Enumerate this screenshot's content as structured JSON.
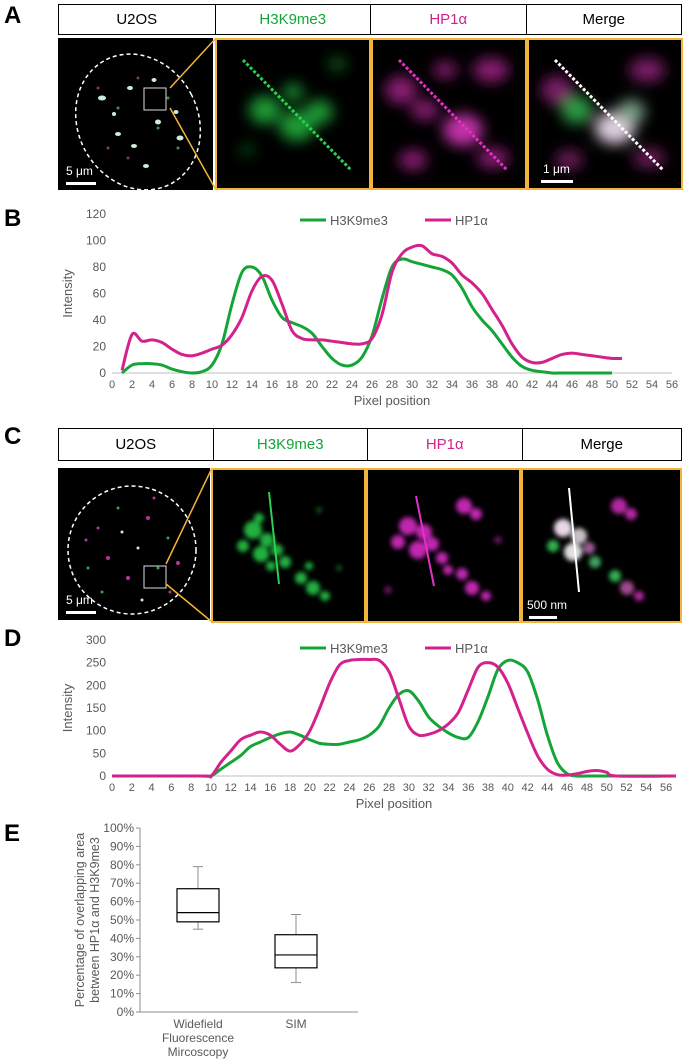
{
  "panels": {
    "A": {
      "letter": "A",
      "headers": [
        "U2OS",
        "H3K9me3",
        "HP1α",
        "Merge"
      ],
      "scale_overview": "5 μm",
      "scale_zoom": "1 μm"
    },
    "B": {
      "letter": "B"
    },
    "C": {
      "letter": "C",
      "headers": [
        "U2OS",
        "H3K9me3",
        "HP1α",
        "Merge"
      ],
      "scale_overview": "5 μm",
      "scale_zoom": "500 nm"
    },
    "D": {
      "letter": "D"
    },
    "E": {
      "letter": "E"
    }
  },
  "colors": {
    "green": "#13a538",
    "magenta": "#d4218c",
    "gold": "#f2b43c"
  },
  "chart_data": [
    {
      "id": "B",
      "type": "line",
      "xlabel": "Pixel position",
      "ylabel": "Intensity",
      "xlim": [
        0,
        56
      ],
      "ylim": [
        0,
        120
      ],
      "xticks": [
        0,
        2,
        4,
        6,
        8,
        10,
        12,
        14,
        16,
        18,
        20,
        22,
        24,
        26,
        28,
        30,
        32,
        34,
        36,
        38,
        40,
        42,
        44,
        46,
        48,
        50,
        52,
        54,
        56
      ],
      "yticks": [
        0,
        20,
        40,
        60,
        80,
        100,
        120
      ],
      "legend": "top",
      "series": [
        {
          "name": "H3K9me3",
          "color": "#13a538",
          "x": [
            1,
            2,
            3,
            4,
            5,
            6,
            7,
            8,
            9,
            10,
            11,
            12,
            13,
            14,
            15,
            16,
            17,
            18,
            19,
            20,
            21,
            22,
            23,
            24,
            25,
            26,
            27,
            28,
            29,
            30,
            31,
            32,
            33,
            34,
            35,
            36,
            37,
            38,
            39,
            40,
            41,
            42,
            43,
            44,
            45,
            46,
            47,
            48,
            49,
            50
          ],
          "y": [
            0,
            6,
            7,
            7,
            6,
            3,
            1,
            0,
            1,
            6,
            22,
            52,
            76,
            80,
            73,
            55,
            42,
            38,
            35,
            30,
            20,
            11,
            6,
            6,
            12,
            28,
            56,
            80,
            86,
            84,
            82,
            80,
            78,
            74,
            64,
            50,
            40,
            32,
            22,
            12,
            5,
            2,
            1,
            0,
            0,
            0,
            0,
            0,
            0,
            0
          ]
        },
        {
          "name": "HP1α",
          "color": "#d4218c",
          "x": [
            1,
            2,
            3,
            4,
            5,
            6,
            7,
            8,
            9,
            10,
            11,
            12,
            13,
            14,
            15,
            16,
            17,
            18,
            19,
            20,
            21,
            22,
            23,
            24,
            25,
            26,
            27,
            28,
            29,
            30,
            31,
            32,
            33,
            34,
            35,
            36,
            37,
            38,
            39,
            40,
            41,
            42,
            43,
            44,
            45,
            46,
            47,
            48,
            49,
            50,
            51
          ],
          "y": [
            2,
            29,
            24,
            25,
            23,
            18,
            14,
            13,
            15,
            18,
            21,
            29,
            42,
            62,
            73,
            70,
            52,
            32,
            26,
            25,
            25,
            24,
            23,
            22,
            22,
            26,
            44,
            76,
            90,
            95,
            96,
            90,
            88,
            83,
            74,
            68,
            60,
            48,
            36,
            22,
            12,
            8,
            8,
            11,
            14,
            15,
            14,
            13,
            12,
            11,
            11
          ]
        }
      ]
    },
    {
      "id": "D",
      "type": "line",
      "xlabel": "Pixel position",
      "ylabel": "Intensity",
      "xlim": [
        0,
        57
      ],
      "ylim": [
        0,
        300
      ],
      "xticks": [
        0,
        2,
        4,
        6,
        8,
        10,
        12,
        14,
        16,
        18,
        20,
        22,
        24,
        26,
        28,
        30,
        32,
        34,
        36,
        38,
        40,
        42,
        44,
        46,
        48,
        50,
        52,
        54,
        56
      ],
      "yticks": [
        0,
        50,
        100,
        150,
        200,
        250,
        300
      ],
      "legend": "top",
      "series": [
        {
          "name": "H3K9me3",
          "color": "#13a538",
          "x": [
            0,
            9,
            10,
            11,
            12,
            13,
            14,
            15,
            16,
            17,
            18,
            19,
            20,
            21,
            22,
            23,
            24,
            25,
            26,
            27,
            28,
            29,
            30,
            31,
            32,
            33,
            34,
            35,
            36,
            37,
            38,
            39,
            40,
            41,
            42,
            43,
            44,
            45,
            46,
            47,
            48,
            49,
            50,
            51,
            57
          ],
          "y": [
            0,
            0,
            0,
            15,
            30,
            45,
            65,
            75,
            85,
            93,
            97,
            90,
            80,
            72,
            70,
            70,
            75,
            80,
            90,
            110,
            150,
            180,
            188,
            165,
            130,
            110,
            95,
            85,
            85,
            120,
            175,
            235,
            255,
            250,
            230,
            170,
            90,
            30,
            5,
            0,
            0,
            0,
            0,
            0,
            0
          ]
        },
        {
          "name": "HP1α",
          "color": "#d4218c",
          "x": [
            0,
            9,
            10,
            11,
            12,
            13,
            14,
            15,
            16,
            17,
            18,
            19,
            20,
            21,
            22,
            23,
            24,
            25,
            26,
            27,
            28,
            29,
            30,
            31,
            32,
            33,
            34,
            35,
            36,
            37,
            38,
            39,
            40,
            41,
            42,
            43,
            44,
            45,
            46,
            47,
            48,
            49,
            50,
            51,
            57
          ],
          "y": [
            0,
            0,
            0,
            30,
            55,
            80,
            90,
            97,
            90,
            70,
            55,
            70,
            100,
            150,
            205,
            245,
            255,
            257,
            257,
            255,
            230,
            170,
            110,
            90,
            92,
            100,
            115,
            140,
            190,
            240,
            250,
            240,
            205,
            150,
            95,
            45,
            15,
            3,
            2,
            5,
            10,
            12,
            8,
            0,
            0
          ]
        }
      ]
    },
    {
      "id": "E",
      "type": "box",
      "ylabel": "Percentage of overlapping area between HP1α and H3K9me3",
      "yticks": [
        "0%",
        "10%",
        "20%",
        "30%",
        "40%",
        "50%",
        "60%",
        "70%",
        "80%",
        "90%",
        "100%"
      ],
      "ylim": [
        0,
        100
      ],
      "categories": [
        "Widefield Fluorescence Mircoscopy",
        "SIM"
      ],
      "boxes": [
        {
          "min": 45,
          "q1": 49,
          "median": 54,
          "q3": 67,
          "max": 79
        },
        {
          "min": 16,
          "q1": 24,
          "median": 31,
          "q3": 42,
          "max": 53
        }
      ]
    }
  ]
}
